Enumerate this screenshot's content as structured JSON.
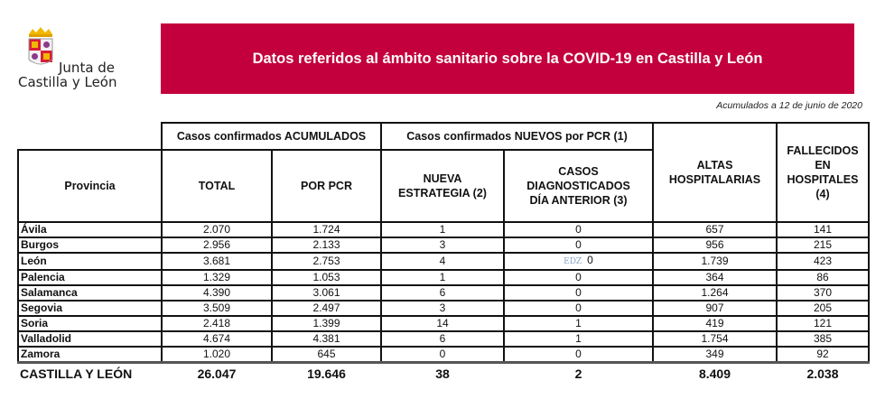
{
  "logo": {
    "line1": "Junta de",
    "line2": "Castilla y León"
  },
  "banner": {
    "title": "Datos referidos al ámbito sanitario sobre la COVID-19 en Castilla y León",
    "color": "#c3003d"
  },
  "date_note": "Acumulados a 12 de junio de 2020",
  "table": {
    "group_headers": {
      "acumulados": "Casos confirmados ACUMULADOS",
      "nuevos": "Casos confirmados NUEVOS por PCR (1)"
    },
    "headers": {
      "provincia": "Provincia",
      "total": "TOTAL",
      "por_pcr": "POR PCR",
      "nueva_estrategia": [
        "NUEVA",
        "ESTRATEGIA (2)"
      ],
      "casos_diag": [
        "CASOS",
        "DIAGNOSTICADOS",
        "DÍA ANTERIOR (3)"
      ],
      "altas": [
        "ALTAS",
        "HOSPITALARIAS"
      ],
      "fallecidos": [
        "FALLECIDOS",
        "EN",
        "HOSPITALES",
        "(4)"
      ]
    },
    "rows": [
      [
        "Ávila",
        "2.070",
        "1.724",
        "1",
        "0",
        "657",
        "141"
      ],
      [
        "Burgos",
        "2.956",
        "2.133",
        "3",
        "0",
        "956",
        "215"
      ],
      [
        "León",
        "3.681",
        "2.753",
        "4",
        "0",
        "1.739",
        "423"
      ],
      [
        "Palencia",
        "1.329",
        "1.053",
        "1",
        "0",
        "364",
        "86"
      ],
      [
        "Salamanca",
        "4.390",
        "3.061",
        "6",
        "0",
        "1.264",
        "370"
      ],
      [
        "Segovia",
        "3.509",
        "2.497",
        "3",
        "0",
        "907",
        "205"
      ],
      [
        "Soria",
        "2.418",
        "1.399",
        "14",
        "1",
        "419",
        "121"
      ],
      [
        "Valladolid",
        "4.674",
        "4.381",
        "6",
        "1",
        "1.754",
        "385"
      ],
      [
        "Zamora",
        "1.020",
        "645",
        "0",
        "0",
        "349",
        "92"
      ]
    ],
    "total_row": [
      "CASTILLA Y LEÓN",
      "26.047",
      "19.646",
      "38",
      "2",
      "8.409",
      "2.038"
    ]
  },
  "watermark": "EDZ"
}
